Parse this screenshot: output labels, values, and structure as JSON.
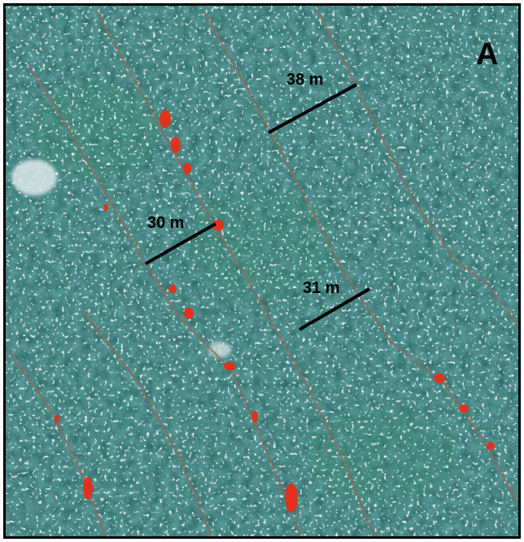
{
  "panel_label": "A",
  "measurements": [
    {
      "label": "38 m"
    },
    {
      "label": "30 m"
    },
    {
      "label": "31 m"
    }
  ]
}
